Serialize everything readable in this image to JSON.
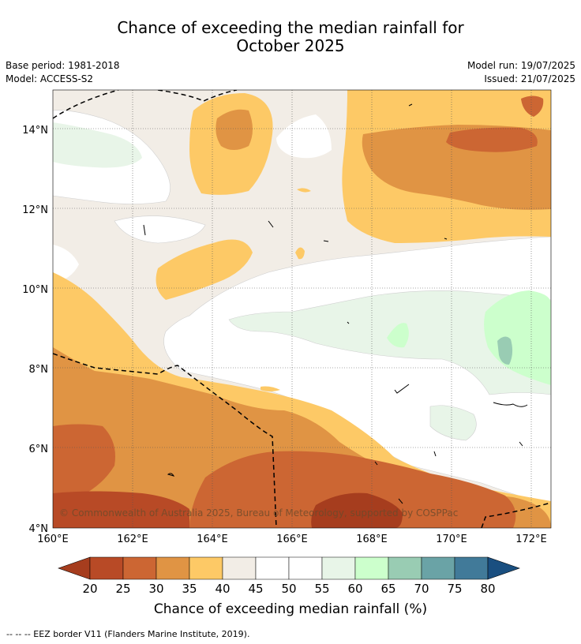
{
  "title_line1": "Chance of exceeding the median rainfall for",
  "title_line2": "October 2025",
  "base_period": "Base period: 1981-2018",
  "model": "Model: ACCESS-S2",
  "model_run": "Model run: 19/07/2025",
  "issued": "Issued: 21/07/2025",
  "copyright": "© Commonwealth of Australia 2025, Bureau of Meteorology, supported by COSPPac",
  "lon_labels": [
    "160°E",
    "162°E",
    "164°E",
    "166°E",
    "168°E",
    "170°E",
    "172°E"
  ],
  "lat_labels": [
    "4°N",
    "6°N",
    "8°N",
    "10°N",
    "12°N",
    "14°N"
  ],
  "colorbar": {
    "title": "Chance of exceeding median rainfall (%)",
    "ticks": [
      "20",
      "25",
      "30",
      "35",
      "40",
      "45",
      "50",
      "55",
      "60",
      "65",
      "70",
      "75",
      "80"
    ],
    "colors": [
      "#a63d1e",
      "#b84a26",
      "#cc6633",
      "#e09444",
      "#fdc966",
      "#f2ede6",
      "#ffffff",
      "#ffffff",
      "#e8f5e8",
      "#ccffcc",
      "#99ccb3",
      "#6aa3a6",
      "#417a99",
      "#1a4f80"
    ]
  },
  "eez_note": "-- -- -- EEZ border V11 (Flanders Marine Institute, 2019)."
}
